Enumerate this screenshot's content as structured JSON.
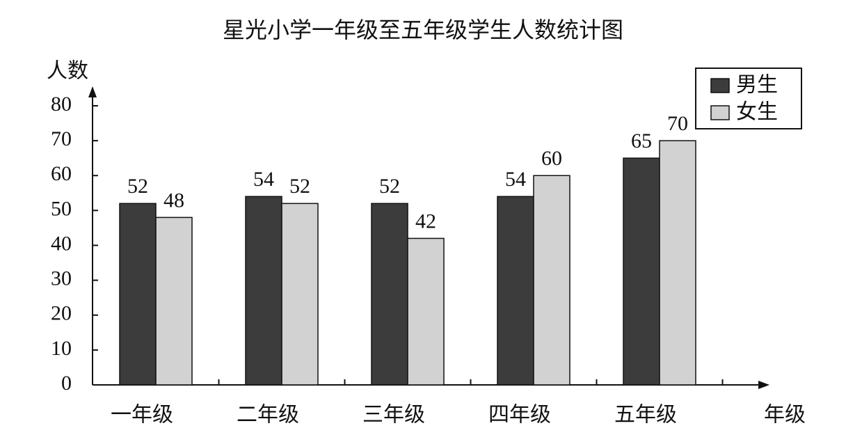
{
  "chart_data": {
    "type": "bar",
    "title": "星光小学一年级至五年级学生人数统计图",
    "y_label": "人数",
    "x_label": "年级",
    "categories": [
      "一年级",
      "二年级",
      "三年级",
      "四年级",
      "五年级"
    ],
    "series": [
      {
        "name": "男生",
        "color": "#3c3c3c",
        "values": [
          52,
          54,
          52,
          54,
          65
        ]
      },
      {
        "name": "女生",
        "color": "#d2d2d2",
        "values": [
          48,
          52,
          42,
          60,
          70
        ]
      }
    ],
    "ylim": [
      0,
      80
    ],
    "yticks": [
      0,
      10,
      20,
      30,
      40,
      50,
      60,
      70,
      80
    ],
    "grid": false,
    "legend": "upper right"
  }
}
